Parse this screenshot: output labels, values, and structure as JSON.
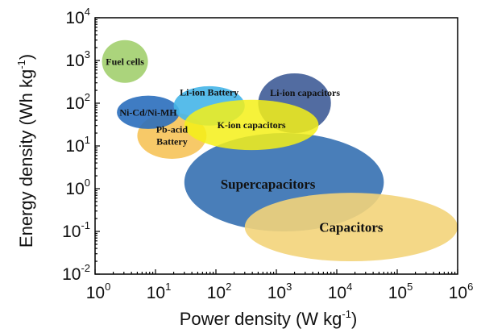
{
  "chart_data": {
    "type": "ellipse-region",
    "xlabel": {
      "text": "Power density (W kg",
      "sup": "-1",
      "close": ")"
    },
    "ylabel": {
      "text": "Energy density (Wh kg",
      "sup": "-1",
      "close": ")"
    },
    "x_scale": "log",
    "y_scale": "log",
    "xlim": [
      1,
      1000000
    ],
    "ylim": [
      0.01,
      10000
    ],
    "x_ticks": [
      {
        "base": "10",
        "exp": "0"
      },
      {
        "base": "10",
        "exp": "1"
      },
      {
        "base": "10",
        "exp": "2"
      },
      {
        "base": "10",
        "exp": "3"
      },
      {
        "base": "10",
        "exp": "4"
      },
      {
        "base": "10",
        "exp": "5"
      },
      {
        "base": "10",
        "exp": "6"
      }
    ],
    "y_ticks": [
      {
        "base": "10",
        "exp": "-2"
      },
      {
        "base": "10",
        "exp": "-1"
      },
      {
        "base": "10",
        "exp": "0"
      },
      {
        "base": "10",
        "exp": "1"
      },
      {
        "base": "10",
        "exp": "2"
      },
      {
        "base": "10",
        "exp": "3"
      },
      {
        "base": "10",
        "exp": "4"
      }
    ],
    "grid": false,
    "regions": [
      {
        "name": "Fuel cells",
        "x_range": [
          1.3,
          7.5
        ],
        "y_range": [
          300,
          3000
        ],
        "color": "#9ccc65",
        "opacity": 0.85
      },
      {
        "name": "Supercapacitors",
        "x_range": [
          30,
          60000
        ],
        "y_range": [
          0.1,
          20
        ],
        "color": "#3f77b5",
        "opacity": 0.95
      },
      {
        "name": "Capacitors",
        "x_range": [
          300,
          1000000
        ],
        "y_range": [
          0.02,
          0.8
        ],
        "color": "#f3d47a",
        "opacity": 0.9
      },
      {
        "name": "Pb-acid Battery",
        "x_range": [
          5,
          70
        ],
        "y_range": [
          5,
          60
        ],
        "color": "#f6bf4e",
        "opacity": 0.85
      },
      {
        "name": "Ni-Cd/Ni-MH",
        "x_range": [
          2.3,
          25
        ],
        "y_range": [
          25,
          150
        ],
        "color": "#2a6ebd",
        "opacity": 0.9
      },
      {
        "name": "Li-ion Battery",
        "x_range": [
          20,
          300
        ],
        "y_range": [
          30,
          250
        ],
        "color": "#45b5e8",
        "opacity": 0.9
      },
      {
        "name": "Li-ion capacitors",
        "x_range": [
          500,
          8000
        ],
        "y_range": [
          20,
          500
        ],
        "color": "#3f5c97",
        "opacity": 0.9
      },
      {
        "name": "K-ion capacitors",
        "x_range": [
          30,
          5000
        ],
        "y_range": [
          8,
          120
        ],
        "color": "#f4f018",
        "opacity": 0.85
      }
    ]
  }
}
